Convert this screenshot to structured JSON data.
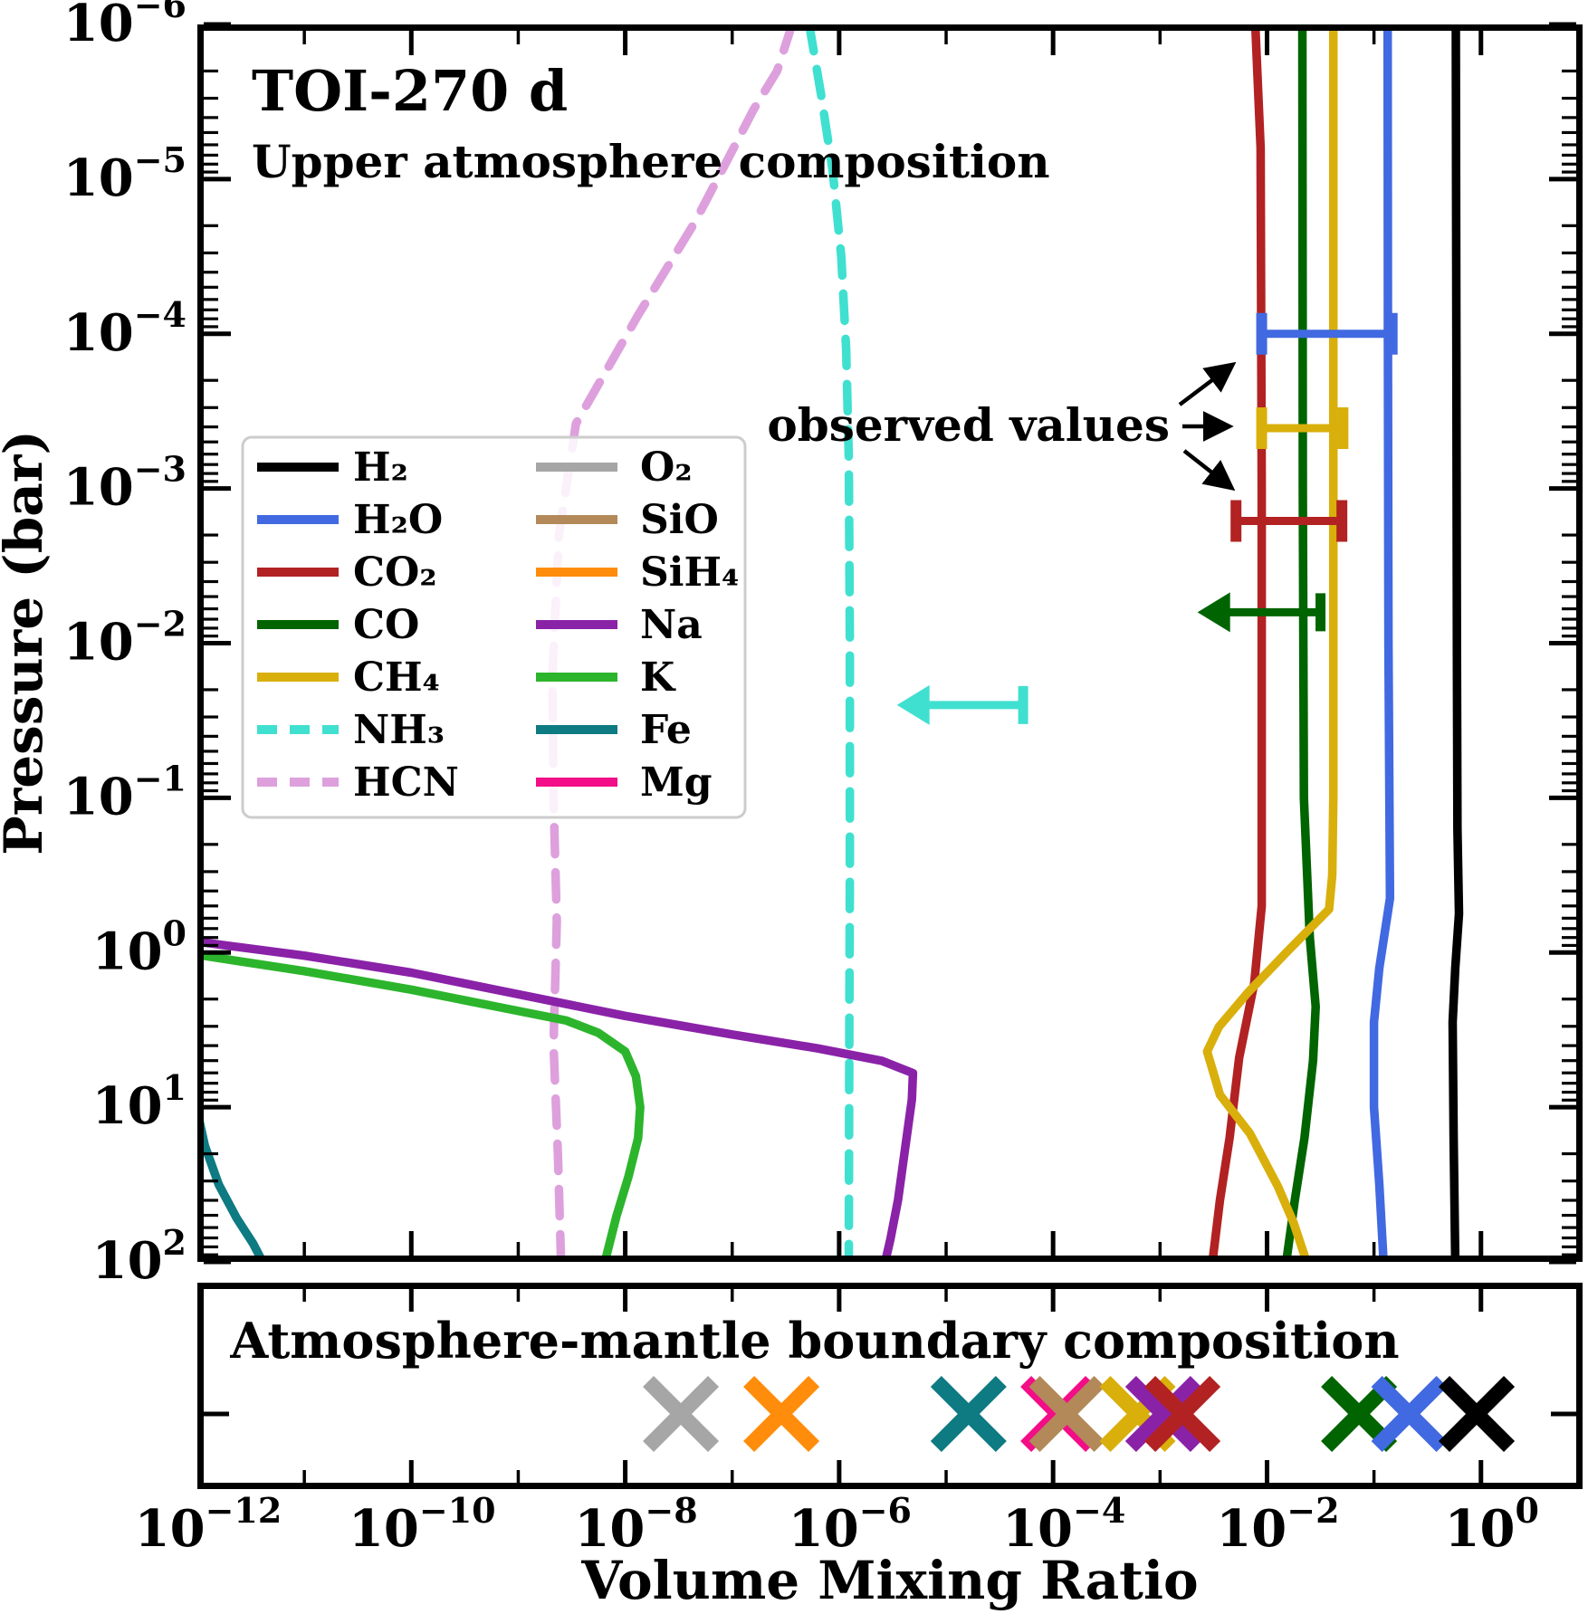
{
  "figure": {
    "title": "TOI-270 d",
    "subtitle": "Upper atmosphere composition",
    "xlabel": "Volume Mixing Ratio",
    "ylabel": "Pressure (bar)",
    "annotation": "observed values",
    "bottom_title": "Atmosphere-mantle boundary composition"
  },
  "colors": {
    "h2": "#000000",
    "h2o": "#4169e1",
    "co2": "#b22222",
    "co": "#006400",
    "ch4": "#d9af0b",
    "nh3": "#40e0d0",
    "hcn": "#dda0dd",
    "o2": "#a6a6a6",
    "sio": "#b3895a",
    "sih4": "#ff8c0a",
    "na": "#8a22a8",
    "k": "#2cb52c",
    "fe": "#0e7a82",
    "mg": "#f30d86"
  },
  "legend": {
    "columns": [
      [
        {
          "label": "H₂",
          "color": "#000000",
          "dash": false
        },
        {
          "label": "H₂O",
          "color": "#4169e1",
          "dash": false
        },
        {
          "label": "CO₂",
          "color": "#b22222",
          "dash": false
        },
        {
          "label": "CO",
          "color": "#006400",
          "dash": false
        },
        {
          "label": "CH₄",
          "color": "#d9af0b",
          "dash": false
        },
        {
          "label": "NH₃",
          "color": "#40e0d0",
          "dash": true
        },
        {
          "label": "HCN",
          "color": "#dda0dd",
          "dash": true
        }
      ],
      [
        {
          "label": "O₂",
          "color": "#a6a6a6",
          "dash": false
        },
        {
          "label": "SiO",
          "color": "#b3895a",
          "dash": false
        },
        {
          "label": "SiH₄",
          "color": "#ff8c0a",
          "dash": false
        },
        {
          "label": "Na",
          "color": "#8a22a8",
          "dash": false
        },
        {
          "label": "K",
          "color": "#2cb52c",
          "dash": false
        },
        {
          "label": "Fe",
          "color": "#0e7a82",
          "dash": false
        },
        {
          "label": "Mg",
          "color": "#f30d86",
          "dash": false
        }
      ]
    ]
  },
  "chart_data": [
    {
      "type": "line",
      "title": "TOI-270 d",
      "subtitle": "Upper atmosphere composition",
      "xlabel": "Volume Mixing Ratio",
      "ylabel": "Pressure (bar)",
      "x_scale": "log",
      "y_scale": "log",
      "y_inverted": true,
      "xlim_log": [
        -12,
        0.95
      ],
      "ylim_log": [
        -6,
        2
      ],
      "x_major_tick_exponents": [
        -12,
        -10,
        -8,
        -6,
        -4,
        -2,
        0
      ],
      "x_minor_tick_exponents": [
        -11,
        -9,
        -7,
        -5,
        -3,
        -1
      ],
      "y_tick_exponents": [
        -6,
        -5,
        -4,
        -3,
        -2,
        -1,
        0,
        1,
        2
      ],
      "grid": false,
      "legend_position": "upper-left-inside",
      "series": [
        {
          "name": "H₂",
          "color": "#000000",
          "dash": false,
          "points": [
            [
              -0.235,
              -6
            ],
            [
              -0.23,
              -4
            ],
            [
              -0.225,
              -2
            ],
            [
              -0.22,
              -0.8
            ],
            [
              -0.205,
              -0.25
            ],
            [
              -0.24,
              0.1
            ],
            [
              -0.265,
              0.45
            ],
            [
              -0.255,
              1.2
            ],
            [
              -0.24,
              2
            ]
          ]
        },
        {
          "name": "H₂O",
          "color": "#4169e1",
          "dash": false,
          "points": [
            [
              -0.872,
              -6
            ],
            [
              -0.87,
              -4
            ],
            [
              -0.865,
              -2
            ],
            [
              -0.85,
              -0.35
            ],
            [
              -0.95,
              0.1
            ],
            [
              -1.0,
              0.45
            ],
            [
              -1.0,
              1.0
            ],
            [
              -0.95,
              1.5
            ],
            [
              -0.91,
              2
            ]
          ]
        },
        {
          "name": "CO₂",
          "color": "#b22222",
          "dash": false,
          "points": [
            [
              -2.11,
              -6
            ],
            [
              -2.06,
              -5.2
            ],
            [
              -2.05,
              -3
            ],
            [
              -2.05,
              -0.3
            ],
            [
              -2.12,
              0.2
            ],
            [
              -2.26,
              0.68
            ],
            [
              -2.35,
              1.2
            ],
            [
              -2.44,
              1.6
            ],
            [
              -2.51,
              2
            ]
          ]
        },
        {
          "name": "CO",
          "color": "#006400",
          "dash": false,
          "points": [
            [
              -1.67,
              -6
            ],
            [
              -1.665,
              -3
            ],
            [
              -1.655,
              -1
            ],
            [
              -1.6,
              -0.1
            ],
            [
              -1.545,
              0.35
            ],
            [
              -1.57,
              0.7
            ],
            [
              -1.65,
              1.2
            ],
            [
              -1.74,
              1.6
            ],
            [
              -1.82,
              2
            ]
          ]
        },
        {
          "name": "CH₄",
          "color": "#d9af0b",
          "dash": false,
          "points": [
            [
              -1.38,
              -6
            ],
            [
              -1.38,
              -1
            ],
            [
              -1.39,
              -0.5
            ],
            [
              -1.42,
              -0.28
            ],
            [
              -1.82,
              0.0
            ],
            [
              -2.18,
              0.26
            ],
            [
              -2.45,
              0.48
            ],
            [
              -2.56,
              0.64
            ],
            [
              -2.44,
              0.92
            ],
            [
              -2.16,
              1.17
            ],
            [
              -1.9,
              1.51
            ],
            [
              -1.75,
              1.75
            ],
            [
              -1.63,
              2
            ]
          ]
        },
        {
          "name": "NH₃",
          "color": "#40e0d0",
          "dash": true,
          "points": [
            [
              -6.28,
              -6
            ],
            [
              -6.17,
              -5.55
            ],
            [
              -6.06,
              -5.05
            ],
            [
              -5.98,
              -4.5
            ],
            [
              -5.935,
              -3.9
            ],
            [
              -5.91,
              -3.2
            ],
            [
              -5.9,
              -2
            ],
            [
              -5.9,
              -0.5
            ],
            [
              -5.905,
              0.5
            ],
            [
              -5.91,
              2
            ]
          ]
        },
        {
          "name": "HCN",
          "color": "#dda0dd",
          "dash": true,
          "points": [
            [
              -6.44,
              -6
            ],
            [
              -6.58,
              -5.7
            ],
            [
              -6.8,
              -5.45
            ],
            [
              -7.1,
              -5.05
            ],
            [
              -7.35,
              -4.72
            ],
            [
              -7.88,
              -4.12
            ],
            [
              -8.46,
              -3.42
            ],
            [
              -8.62,
              -2.7
            ],
            [
              -8.68,
              -1.8
            ],
            [
              -8.67,
              -1.0
            ],
            [
              -8.64,
              -0.2
            ],
            [
              -8.67,
              0.6
            ],
            [
              -8.63,
              1.3
            ],
            [
              -8.6,
              2
            ]
          ]
        },
        {
          "name": "Na",
          "color": "#8a22a8",
          "dash": false,
          "points": [
            [
              -12,
              -0.07
            ],
            [
              -11,
              0.02
            ],
            [
              -10,
              0.13
            ],
            [
              -9,
              0.27
            ],
            [
              -8,
              0.41
            ],
            [
              -7,
              0.53
            ],
            [
              -6.2,
              0.62
            ],
            [
              -5.6,
              0.7
            ],
            [
              -5.31,
              0.78
            ],
            [
              -5.32,
              0.95
            ],
            [
              -5.37,
              1.2
            ],
            [
              -5.45,
              1.6
            ],
            [
              -5.52,
              1.85
            ],
            [
              -5.57,
              2
            ]
          ]
        },
        {
          "name": "K",
          "color": "#2cb52c",
          "dash": false,
          "points": [
            [
              -12,
              0.015
            ],
            [
              -11,
              0.12
            ],
            [
              -10,
              0.24
            ],
            [
              -9.2,
              0.35
            ],
            [
              -8.55,
              0.44
            ],
            [
              -8.25,
              0.52
            ],
            [
              -8.0,
              0.64
            ],
            [
              -7.9,
              0.8
            ],
            [
              -7.86,
              1.0
            ],
            [
              -7.88,
              1.2
            ],
            [
              -7.97,
              1.45
            ],
            [
              -8.08,
              1.7
            ],
            [
              -8.19,
              2
            ]
          ]
        },
        {
          "name": "Fe",
          "color": "#0e7a82",
          "dash": false,
          "points": [
            [
              -12,
              1.03
            ],
            [
              -11.93,
              1.25
            ],
            [
              -11.8,
              1.5
            ],
            [
              -11.63,
              1.72
            ],
            [
              -11.48,
              1.88
            ],
            [
              -11.39,
              2
            ]
          ]
        }
      ],
      "observed_values": [
        {
          "species": "H₂O",
          "type": "errorbar",
          "log_pressure": -4.0,
          "log_vmr_lo": -2.05,
          "log_vmr_hi": -0.83,
          "color": "#4169e1"
        },
        {
          "species": "CH₄",
          "type": "errorbar",
          "log_pressure": -3.39,
          "log_vmr_lo": -2.05,
          "log_vmr_hi": -1.29,
          "color": "#d9af0b"
        },
        {
          "species": "CO₂",
          "type": "errorbar",
          "log_pressure": -2.79,
          "log_vmr_lo": -2.29,
          "log_vmr_hi": -1.3,
          "color": "#b22222"
        },
        {
          "species": "CO",
          "type": "upper-limit",
          "log_pressure": -2.2,
          "log_vmr_cap": -1.5,
          "log_vmr_tip": -2.65,
          "color": "#006400"
        },
        {
          "species": "NH₃",
          "type": "upper-limit",
          "log_pressure": -1.6,
          "log_vmr_cap": -4.28,
          "log_vmr_tip": -5.46,
          "color": "#40e0d0"
        }
      ],
      "annotation": "observed values"
    },
    {
      "type": "scatter",
      "title": "Atmosphere-mantle boundary composition",
      "marker": "x",
      "points": [
        {
          "species": "O₂",
          "log_vmr": -7.48,
          "color": "#a6a6a6"
        },
        {
          "species": "SiH₄",
          "log_vmr": -6.54,
          "color": "#ff8c0a"
        },
        {
          "species": "Fe",
          "log_vmr": -4.79,
          "color": "#0e7a82"
        },
        {
          "species": "Mg",
          "log_vmr": -3.95,
          "color": "#f30d86"
        },
        {
          "species": "SiO",
          "log_vmr": -3.87,
          "color": "#b3895a"
        },
        {
          "species": "CH₄",
          "log_vmr": -3.21,
          "color": "#d9af0b"
        },
        {
          "species": "Na",
          "log_vmr": -2.97,
          "color": "#8a22a8"
        },
        {
          "species": "CO₂",
          "log_vmr": -2.79,
          "color": "#b22222"
        },
        {
          "species": "CO",
          "log_vmr": -1.14,
          "color": "#006400"
        },
        {
          "species": "H₂O",
          "log_vmr": -0.67,
          "color": "#4169e1"
        },
        {
          "species": "H₂",
          "log_vmr": -0.04,
          "color": "#000000"
        }
      ]
    }
  ]
}
